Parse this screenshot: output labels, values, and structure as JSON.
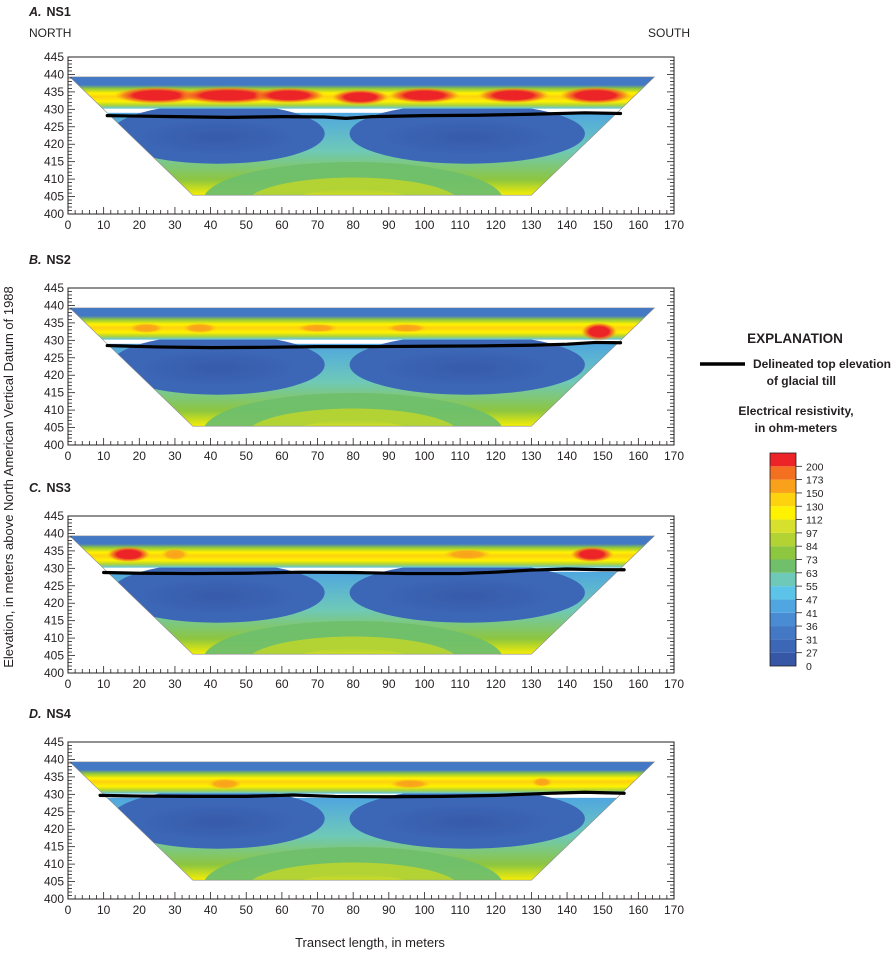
{
  "figure": {
    "ylabel": "Elevation, in meters above North American Vertical Datum of 1988",
    "xlabel": "Transect length, in meters",
    "direction_left": "NORTH",
    "direction_right": "SOUTH"
  },
  "legend": {
    "title": "EXPLANATION",
    "line_label_1": "Delineated top elevation",
    "line_label_2": "of glacial till",
    "scale_title_1": "Electrical resistivity,",
    "scale_title_2": "in ohm-meters",
    "bins": [
      "0",
      "27",
      "31",
      "36",
      "41",
      "47",
      "55",
      "63",
      "73",
      "84",
      "97",
      "112",
      "130",
      "150",
      "173",
      "200"
    ],
    "colors": [
      "#3656a6",
      "#3c66b6",
      "#4378c5",
      "#4a8cd4",
      "#4fa6e0",
      "#5cc4e8",
      "#6ec9b9",
      "#6fbf6b",
      "#8dc63f",
      "#b3d335",
      "#d7e02c",
      "#fff200",
      "#fdd20f",
      "#f9a11b",
      "#f37021",
      "#ec2327"
    ]
  },
  "chart_data": [
    {
      "type": "heatmap",
      "panel_letter": "A.",
      "panel_name": "NS1",
      "x_ticks": [
        "0",
        "10",
        "20",
        "30",
        "40",
        "50",
        "60",
        "70",
        "80",
        "90",
        "100",
        "110",
        "120",
        "130",
        "140",
        "150",
        "160",
        "170"
      ],
      "y_ticks": [
        "445",
        "440",
        "435",
        "430",
        "425",
        "420",
        "415",
        "410",
        "405",
        "400"
      ],
      "xlim": [
        0,
        170
      ],
      "ylim": [
        400,
        445
      ],
      "till_top": {
        "x": [
          11,
          30,
          45,
          60,
          72,
          78,
          85,
          100,
          115,
          130,
          145,
          155
        ],
        "y": [
          428.2,
          427.9,
          427.7,
          427.9,
          427.8,
          427.4,
          427.9,
          428.2,
          428.3,
          428.6,
          429.0,
          428.8
        ]
      }
    },
    {
      "type": "heatmap",
      "panel_letter": "B.",
      "panel_name": "NS2",
      "x_ticks": [
        "0",
        "10",
        "20",
        "30",
        "40",
        "50",
        "60",
        "70",
        "80",
        "90",
        "100",
        "110",
        "120",
        "130",
        "140",
        "150",
        "160",
        "170"
      ],
      "y_ticks": [
        "445",
        "440",
        "435",
        "430",
        "425",
        "420",
        "415",
        "410",
        "405",
        "400"
      ],
      "xlim": [
        0,
        170
      ],
      "ylim": [
        400,
        445
      ],
      "till_top": {
        "x": [
          11,
          25,
          40,
          55,
          70,
          85,
          100,
          115,
          130,
          140,
          148,
          155
        ],
        "y": [
          428.5,
          428.1,
          427.9,
          428.0,
          428.2,
          428.2,
          428.3,
          428.4,
          428.6,
          428.9,
          429.4,
          429.3
        ]
      }
    },
    {
      "type": "heatmap",
      "panel_letter": "C.",
      "panel_name": "NS3",
      "x_ticks": [
        "0",
        "10",
        "20",
        "30",
        "40",
        "50",
        "60",
        "70",
        "80",
        "90",
        "100",
        "110",
        "120",
        "130",
        "140",
        "150",
        "160",
        "170"
      ],
      "y_ticks": [
        "445",
        "440",
        "435",
        "430",
        "425",
        "420",
        "415",
        "410",
        "405",
        "400"
      ],
      "xlim": [
        0,
        170
      ],
      "ylim": [
        400,
        445
      ],
      "till_top": {
        "x": [
          10,
          20,
          35,
          50,
          65,
          80,
          95,
          110,
          120,
          130,
          140,
          150,
          156
        ],
        "y": [
          428.8,
          428.6,
          428.5,
          428.6,
          428.9,
          428.8,
          428.5,
          428.5,
          428.9,
          429.5,
          429.8,
          429.6,
          429.6
        ]
      }
    },
    {
      "type": "heatmap",
      "panel_letter": "D.",
      "panel_name": "NS4",
      "x_ticks": [
        "0",
        "10",
        "20",
        "30",
        "40",
        "50",
        "60",
        "70",
        "80",
        "90",
        "100",
        "110",
        "120",
        "130",
        "140",
        "150",
        "160",
        "170"
      ],
      "y_ticks": [
        "445",
        "440",
        "435",
        "430",
        "425",
        "420",
        "415",
        "410",
        "405",
        "400"
      ],
      "xlim": [
        0,
        170
      ],
      "ylim": [
        400,
        445
      ],
      "till_top": {
        "x": [
          9,
          20,
          35,
          50,
          63,
          75,
          90,
          105,
          120,
          135,
          145,
          156
        ],
        "y": [
          429.7,
          429.5,
          429.4,
          429.4,
          429.8,
          429.4,
          429.3,
          429.4,
          429.7,
          430.3,
          430.6,
          430.3
        ]
      }
    }
  ]
}
